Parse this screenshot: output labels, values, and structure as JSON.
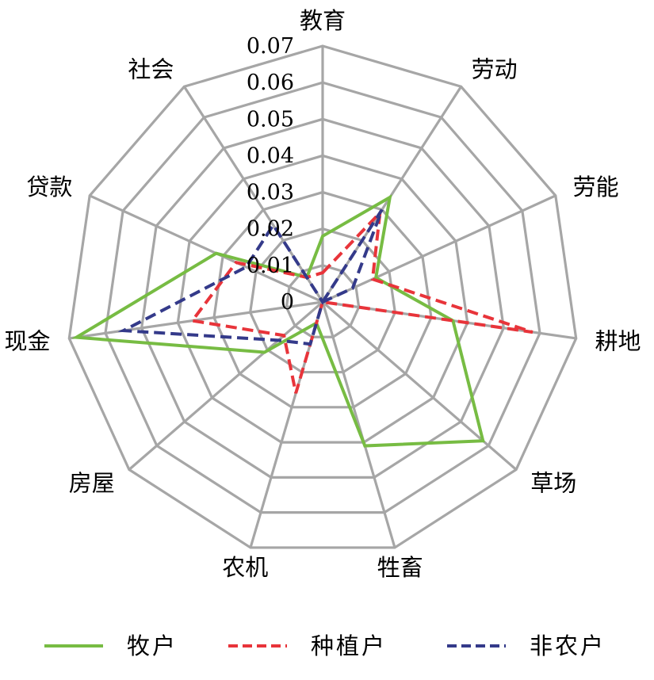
{
  "chart_data": {
    "type": "radar",
    "axes": [
      "教育",
      "劳动",
      "劳能",
      "耕地",
      "草场",
      "牲畜",
      "农机",
      "房屋",
      "现金",
      "贷款",
      "社会"
    ],
    "rlim": [
      0,
      0.07
    ],
    "ticks": [
      "0",
      "0.01",
      "0.02",
      "0.03",
      "0.04",
      "0.05",
      "0.06",
      "0.07"
    ],
    "grid": true,
    "legend_position": "bottom",
    "series": [
      {
        "name": "牧户",
        "color": "#77bc43",
        "dash": "solid",
        "values": [
          0.018,
          0.034,
          0.016,
          0.036,
          0.058,
          0.041,
          0.006,
          0.021,
          0.068,
          0.032,
          0.008
        ]
      },
      {
        "name": "种植户",
        "color": "#e8343a",
        "dash": "dashed",
        "values": [
          0.008,
          0.029,
          0.015,
          0.058,
          0.0,
          0.0,
          0.026,
          0.014,
          0.036,
          0.026,
          0.008
        ]
      },
      {
        "name": "非农户",
        "color": "#343a8a",
        "dash": "dashed",
        "values": [
          0.0,
          0.03,
          0.009,
          0.0,
          0.0,
          0.0,
          0.012,
          0.016,
          0.055,
          0.023,
          0.025
        ]
      }
    ]
  }
}
